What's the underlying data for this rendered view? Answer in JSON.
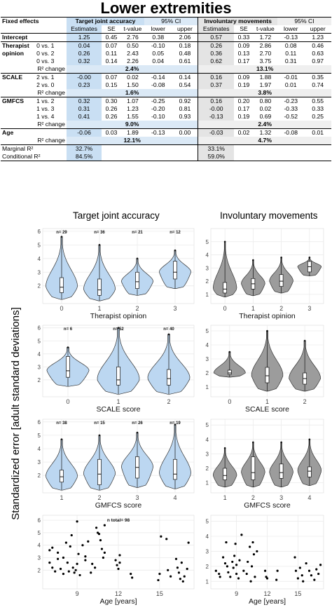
{
  "title": "Lower extremities",
  "table": {
    "head1": {
      "c0": "Fixed effects",
      "t1": "Target joint accuracy",
      "ci": "95% CI",
      "t2": "Involuntary movements",
      "ci2": "95% CI"
    },
    "head2": [
      "Estimates",
      "SE",
      "t-value",
      "lower",
      "upper",
      "Estimates",
      "SE",
      "t-value",
      "lower",
      "upper"
    ],
    "rows": [
      {
        "g": "Intercept",
        "s": "",
        "v": [
          "1.25",
          "0.45",
          "2.76",
          "0.38",
          "2.06",
          "0.57",
          "0.33",
          "1.72",
          "-0.13",
          "1.23"
        ]
      },
      {
        "g": "Therapist",
        "s": "0 vs. 1",
        "v": [
          "0.04",
          "0.07",
          "0.50",
          "-0.10",
          "0.18",
          "0.26",
          "0.09",
          "2.86",
          "0.08",
          "0.46"
        ]
      },
      {
        "g": "opinion",
        "s": "0 vs. 2",
        "v": [
          "0.26",
          "0.11",
          "2.43",
          "0.05",
          "0.48",
          "0.36",
          "0.13",
          "2.70",
          "0.11",
          "0.63"
        ]
      },
      {
        "g": "",
        "s": "0 vs. 3",
        "v": [
          "0.32",
          "0.14",
          "2.26",
          "0.04",
          "0.61",
          "0.62",
          "0.17",
          "3.75",
          "0.31",
          "0.97"
        ]
      },
      {
        "g": "",
        "s": "R² change",
        "c1": "2.4%",
        "c2": "13.1%"
      },
      {
        "g": "SCALE",
        "s": "2 vs. 1",
        "v": [
          "-0.00",
          "0.07",
          "0.02",
          "-0.14",
          "0.14",
          "0.16",
          "0.09",
          "1.88",
          "-0.01",
          "0.35"
        ]
      },
      {
        "g": "",
        "s": "2 vs. 0",
        "v": [
          "0.23",
          "0.15",
          "1.50",
          "-0.08",
          "0.54",
          "0.37",
          "0.19",
          "1.97",
          "0.01",
          "0.74"
        ]
      },
      {
        "g": "",
        "s": "R² change",
        "c1": "1.6%",
        "c2": "3.8%"
      },
      {
        "g": "GMFCS",
        "s": "1 vs. 2",
        "v": [
          "0.32",
          "0.30",
          "1.07",
          "-0.25",
          "0.92",
          "0.16",
          "0.20",
          "0.80",
          "-0.23",
          "0.55"
        ]
      },
      {
        "g": "",
        "s": "1 vs. 3",
        "v": [
          "0.31",
          "0.26",
          "1.23",
          "-0.20",
          "0.81",
          "-0.00",
          "0.17",
          "0.02",
          "-0.33",
          "0.33"
        ]
      },
      {
        "g": "",
        "s": "1 vs. 4",
        "v": [
          "0.41",
          "0.26",
          "1.55",
          "-0.10",
          "0.93",
          "-0.13",
          "0.19",
          "0.69",
          "-0.52",
          "0.25"
        ]
      },
      {
        "g": "",
        "s": "R² change",
        "c1": "9.0%",
        "c2": "2.4%"
      },
      {
        "g": "Age",
        "s": "",
        "v": [
          "-0.06",
          "0.03",
          "1.89",
          "-0.13",
          "0.00",
          "-0.03",
          "0.02",
          "1.32",
          "-0.08",
          "0.01"
        ]
      },
      {
        "g": "",
        "s": "R² change",
        "c1": "12.1%",
        "c2": "4.7%"
      }
    ],
    "marginal": {
      "label": "Marginal R²",
      "a": "32.7%",
      "b": "33.1%"
    },
    "conditional": {
      "label": "Conditional R²",
      "a": "84.5%",
      "b": "59.0%"
    }
  },
  "figure": {
    "col1_title": "Target joint accuracy",
    "col2_title": "Involuntary movements",
    "y_label": "Standardized error [adult standard deviations]",
    "colors": {
      "blue_fill": "#bcd7f1",
      "grey_fill": "#9c9c9c",
      "panel_grid": "#ebebeb"
    }
  },
  "chart_data": [
    {
      "type": "violin",
      "panel": "target-therapist",
      "xlabel": "Therapist opinion",
      "categories": [
        "0",
        "1",
        "2",
        "3"
      ],
      "counts": [
        "n= 29",
        "n= 36",
        "n= 21",
        "n= 12"
      ],
      "ylim": [
        0.7,
        6.2
      ],
      "yticks": [
        "2",
        "3",
        "4",
        "5",
        "6"
      ],
      "yticks_v": [
        2,
        3,
        4,
        5,
        6
      ],
      "medians": [
        1.9,
        1.7,
        2.3,
        3.0
      ],
      "q1": [
        1.5,
        1.3,
        1.8,
        2.5
      ],
      "q3": [
        2.6,
        2.5,
        3.0,
        3.8
      ],
      "min": [
        1.0,
        0.9,
        1.3,
        1.8
      ],
      "max": [
        5.6,
        5.0,
        4.0,
        4.6
      ],
      "fill": "blue"
    },
    {
      "type": "violin",
      "panel": "invol-therapist",
      "xlabel": "Therapist opinion",
      "categories": [
        "0",
        "1",
        "2",
        "3"
      ],
      "counts": [],
      "ylim": [
        0.3,
        6.0
      ],
      "yticks": [
        "1",
        "2",
        "3",
        "4",
        "5"
      ],
      "yticks_v": [
        1,
        2,
        3,
        4,
        5
      ],
      "medians": [
        1.4,
        1.8,
        2.0,
        3.1
      ],
      "q1": [
        1.1,
        1.4,
        1.6,
        2.7
      ],
      "q3": [
        1.9,
        2.2,
        2.5,
        3.5
      ],
      "min": [
        0.8,
        0.9,
        1.1,
        2.4
      ],
      "max": [
        5.0,
        3.6,
        3.8,
        3.8
      ],
      "fill": "grey"
    },
    {
      "type": "violin",
      "panel": "target-scale",
      "xlabel": "SCALE score",
      "categories": [
        "0",
        "1",
        "2"
      ],
      "counts": [
        "n= 6",
        "n= 52",
        "n= 40"
      ],
      "ylim": [
        0.7,
        6.2
      ],
      "yticks": [
        "2",
        "3",
        "4",
        "5",
        "6"
      ],
      "yticks_v": [
        2,
        3,
        4,
        5,
        6
      ],
      "medians": [
        2.7,
        2.0,
        2.1
      ],
      "q1": [
        2.2,
        1.6,
        1.6
      ],
      "q3": [
        3.8,
        3.0,
        2.8
      ],
      "min": [
        1.5,
        0.9,
        0.9
      ],
      "max": [
        4.5,
        6.0,
        5.5
      ],
      "fill": "blue"
    },
    {
      "type": "violin",
      "panel": "invol-scale",
      "xlabel": "SCALE score",
      "categories": [
        "0",
        "1",
        "2"
      ],
      "counts": [],
      "ylim": [
        0.3,
        5.4
      ],
      "yticks": [
        "1",
        "2",
        "3",
        "4",
        "5"
      ],
      "yticks_v": [
        1,
        2,
        3,
        4,
        5
      ],
      "medians": [
        2.0,
        1.8,
        1.6
      ],
      "q1": [
        1.9,
        1.3,
        1.2
      ],
      "q3": [
        2.2,
        2.4,
        2.0
      ],
      "min": [
        1.7,
        0.7,
        0.7
      ],
      "max": [
        3.5,
        5.0,
        4.3
      ],
      "fill": "grey"
    },
    {
      "type": "violin",
      "panel": "target-gmfcs",
      "xlabel": "GMFCS score",
      "categories": [
        "1",
        "2",
        "3",
        "4"
      ],
      "counts": [
        "n= 38",
        "n= 15",
        "n= 26",
        "n= 19"
      ],
      "ylim": [
        0.7,
        6.2
      ],
      "yticks": [
        "2",
        "3",
        "4",
        "5",
        "6"
      ],
      "yticks_v": [
        2,
        3,
        4,
        5,
        6
      ],
      "medians": [
        1.9,
        2.1,
        2.6,
        2.1
      ],
      "q1": [
        1.5,
        1.3,
        1.8,
        1.7
      ],
      "q3": [
        2.4,
        3.2,
        3.4,
        3.2
      ],
      "min": [
        0.9,
        0.9,
        1.1,
        1.0
      ],
      "max": [
        4.7,
        5.0,
        5.2,
        5.8
      ],
      "fill": "blue"
    },
    {
      "type": "violin",
      "panel": "invol-gmfcs",
      "xlabel": "GMFCS score",
      "categories": [
        "1",
        "2",
        "3",
        "4"
      ],
      "counts": [],
      "ylim": [
        0.3,
        5.4
      ],
      "yticks": [
        "1",
        "2",
        "3",
        "4",
        "5"
      ],
      "yticks_v": [
        1,
        2,
        3,
        4,
        5
      ],
      "medians": [
        1.5,
        1.7,
        1.7,
        1.8
      ],
      "q1": [
        1.2,
        1.2,
        1.3,
        1.4
      ],
      "q3": [
        2.0,
        2.8,
        2.3,
        2.1
      ],
      "min": [
        0.7,
        0.7,
        0.7,
        0.8
      ],
      "max": [
        3.4,
        3.8,
        3.8,
        4.0
      ],
      "fill": "grey"
    },
    {
      "type": "scatter",
      "panel": "target-age",
      "xlabel": "Age [years]",
      "annotation": "n total= 98",
      "xticks": [
        "9",
        "12",
        "15"
      ],
      "xticks_v": [
        9,
        12,
        15
      ],
      "xlim": [
        6.5,
        17.5
      ],
      "ylim": [
        0.5,
        6.4
      ],
      "yticks": [
        "2",
        "3",
        "4",
        "5",
        "6"
      ],
      "yticks_v": [
        2,
        3,
        4,
        5,
        6
      ],
      "points": [
        [
          7,
          3.6
        ],
        [
          7,
          2.6
        ],
        [
          7.2,
          3.8
        ],
        [
          7.2,
          2.2
        ],
        [
          7.4,
          1.9
        ],
        [
          7.6,
          3.4
        ],
        [
          7.6,
          2.9
        ],
        [
          7.8,
          2.1
        ],
        [
          8,
          3.0
        ],
        [
          8,
          1.7
        ],
        [
          8.2,
          4.2
        ],
        [
          8.3,
          2.6
        ],
        [
          8.4,
          1.9
        ],
        [
          8.5,
          3.9
        ],
        [
          8.6,
          4.8
        ],
        [
          8.7,
          2.2
        ],
        [
          8.8,
          1.8
        ],
        [
          8.9,
          2.0
        ],
        [
          9,
          5.9
        ],
        [
          9,
          2.5
        ],
        [
          9.1,
          3.3
        ],
        [
          9.2,
          1.6
        ],
        [
          9.4,
          4.0
        ],
        [
          9.6,
          3.1
        ],
        [
          9.6,
          2.8
        ],
        [
          9.8,
          4.3
        ],
        [
          10,
          1.8
        ],
        [
          10.1,
          2.5
        ],
        [
          10.3,
          2.2
        ],
        [
          10.4,
          5.4
        ],
        [
          10.5,
          5.0
        ],
        [
          10.6,
          4.9
        ],
        [
          10.7,
          4.4
        ],
        [
          10.8,
          3.7
        ],
        [
          10.9,
          3.0
        ],
        [
          11,
          5.6
        ],
        [
          11,
          3.4
        ],
        [
          11.8,
          2.8
        ],
        [
          11.9,
          2.4
        ],
        [
          12,
          2.1
        ],
        [
          12.1,
          3.2
        ],
        [
          12.1,
          2.6
        ],
        [
          12.9,
          1.7
        ],
        [
          13,
          1.4
        ],
        [
          14.9,
          1.2
        ],
        [
          15,
          1.7
        ],
        [
          15.1,
          4.7
        ],
        [
          15.5,
          4.5
        ],
        [
          15.6,
          2.0
        ],
        [
          15.8,
          1.5
        ],
        [
          16.2,
          2.9
        ],
        [
          16.3,
          2.2
        ],
        [
          16.4,
          1.8
        ],
        [
          16.5,
          1.3
        ],
        [
          16.6,
          2.6
        ],
        [
          16.7,
          1.1
        ],
        [
          16.8,
          1.5
        ],
        [
          17,
          2.1
        ],
        [
          17.1,
          4.2
        ]
      ],
      "fill": "black"
    },
    {
      "type": "scatter",
      "panel": "invol-age",
      "xlabel": "Age [years]",
      "xticks": [
        "9",
        "12",
        "15"
      ],
      "xticks_v": [
        9,
        12,
        15
      ],
      "xlim": [
        6.5,
        17.5
      ],
      "ylim": [
        0.5,
        5.4
      ],
      "yticks": [
        "1",
        "2",
        "3",
        "4",
        "5"
      ],
      "yticks_v": [
        1,
        2,
        3,
        4,
        5
      ],
      "points": [
        [
          7,
          1.7
        ],
        [
          7.3,
          1.5
        ],
        [
          7.4,
          1.3
        ],
        [
          7.7,
          2.6
        ],
        [
          7.9,
          2.2
        ],
        [
          8,
          3.6
        ],
        [
          8.1,
          2.0
        ],
        [
          8.2,
          1.6
        ],
        [
          8.4,
          1.3
        ],
        [
          8.6,
          2.3
        ],
        [
          8.7,
          1.9
        ],
        [
          8.8,
          2.7
        ],
        [
          8.9,
          3.5
        ],
        [
          9,
          1.5
        ],
        [
          9,
          2.1
        ],
        [
          9.2,
          1.2
        ],
        [
          9.3,
          2.4
        ],
        [
          9.5,
          4.1
        ],
        [
          9.7,
          1.7
        ],
        [
          10,
          1.5
        ],
        [
          10.1,
          2.3
        ],
        [
          10.3,
          3.3
        ],
        [
          10.4,
          1.0
        ],
        [
          10.5,
          2.0
        ],
        [
          10.6,
          3.6
        ],
        [
          10.7,
          2.8
        ],
        [
          10.8,
          1.3
        ],
        [
          11,
          3.0
        ],
        [
          11.8,
          1.7
        ],
        [
          11.9,
          1.3
        ],
        [
          12,
          1.2
        ],
        [
          12.9,
          1.1
        ],
        [
          13,
          1.7
        ],
        [
          14.7,
          2.6
        ],
        [
          14.8,
          1.7
        ],
        [
          15,
          1.2
        ],
        [
          15.2,
          1.9
        ],
        [
          15.4,
          1.4
        ],
        [
          15.5,
          1.0
        ],
        [
          15.8,
          2.2
        ],
        [
          16.1,
          1.7
        ],
        [
          16.3,
          1.4
        ],
        [
          16.6,
          1.1
        ],
        [
          16.8,
          1.8
        ],
        [
          17,
          1.5
        ],
        [
          17.2,
          2.1
        ]
      ],
      "fill": "black"
    }
  ]
}
